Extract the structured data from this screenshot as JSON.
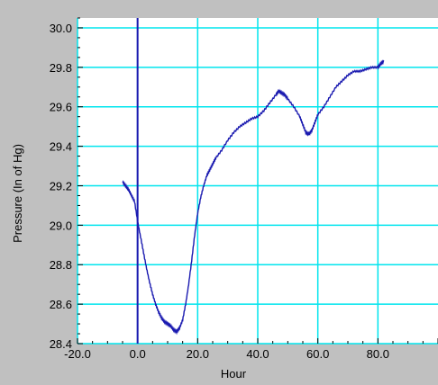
{
  "colors": {
    "background": "#c0c0c0",
    "plot_background": "#ffffff",
    "grid": "#00e5ee",
    "series": "#1a1ab0",
    "zero_line": "#1a1ab0"
  },
  "chart_data": {
    "type": "line",
    "title": "",
    "xlabel": "Hour",
    "ylabel": "Pressure  (In of Hg)",
    "xlim": [
      -20.0,
      100.0
    ],
    "ylim": [
      28.4,
      30.05
    ],
    "x_ticks": [
      -20,
      0,
      20,
      40,
      60,
      80
    ],
    "x_tick_labels": [
      "-20.0",
      "0.0",
      "20.0",
      "40.0",
      "60.0",
      "80.0"
    ],
    "y_ticks": [
      28.4,
      28.6,
      28.8,
      29.0,
      29.2,
      29.4,
      29.6,
      29.8,
      30.0
    ],
    "y_tick_labels": [
      "28.4",
      "28.6",
      "28.8",
      "29.0",
      "29.2",
      "29.4",
      "29.6",
      "29.8",
      "30.0"
    ],
    "grid": true,
    "vertical_reference_line_x": 0,
    "series": [
      {
        "x": [
          -5,
          -4,
          -3,
          -2,
          -1,
          0,
          1,
          2,
          3,
          4,
          5,
          6,
          7,
          8,
          9,
          10,
          11,
          12,
          13,
          14,
          15,
          16,
          17,
          18,
          19,
          20,
          21,
          22,
          23,
          24,
          25,
          26,
          28,
          30,
          32,
          34,
          36,
          38,
          40,
          42,
          44,
          46,
          47,
          48,
          49,
          50,
          52,
          54,
          55,
          56,
          57,
          58,
          59,
          60,
          62,
          64,
          66,
          68,
          70,
          72,
          74,
          76,
          78,
          80,
          81,
          82
        ],
        "y": [
          29.22,
          29.2,
          29.18,
          29.15,
          29.12,
          29.02,
          28.94,
          28.86,
          28.78,
          28.71,
          28.65,
          28.6,
          28.56,
          28.53,
          28.51,
          28.5,
          28.49,
          28.47,
          28.46,
          28.48,
          28.52,
          28.6,
          28.7,
          28.82,
          28.95,
          29.06,
          29.14,
          29.2,
          29.25,
          29.28,
          29.31,
          29.34,
          29.38,
          29.43,
          29.47,
          29.5,
          29.52,
          29.54,
          29.55,
          29.58,
          29.62,
          29.66,
          29.68,
          29.67,
          29.66,
          29.64,
          29.6,
          29.55,
          29.51,
          29.47,
          29.46,
          29.48,
          29.52,
          29.56,
          29.6,
          29.65,
          29.7,
          29.73,
          29.76,
          29.78,
          29.78,
          29.79,
          29.8,
          29.8,
          29.82,
          29.83
        ]
      }
    ]
  }
}
